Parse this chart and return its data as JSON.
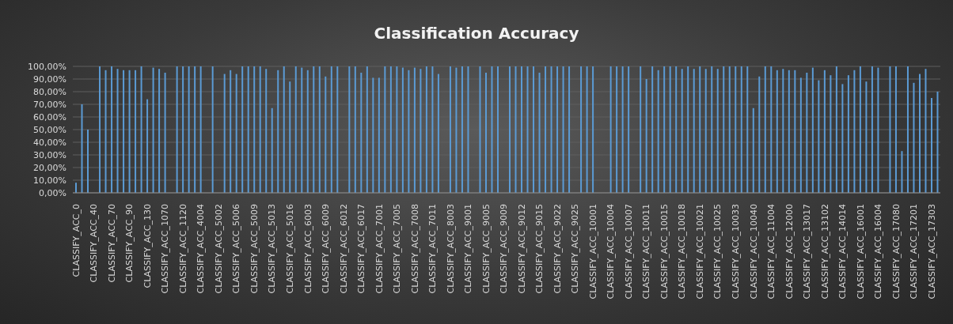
{
  "chart_data": {
    "type": "bar",
    "title": "Classification  Accuracy",
    "categories": [
      "CLASSIFY_ACC_0",
      null,
      null,
      "CLASSIFY_ACC_40",
      null,
      null,
      "CLASSIFY_ACC_70",
      null,
      null,
      "CLASSIFY_ACC_90",
      null,
      null,
      "CLASSIFY_ACC_130",
      null,
      null,
      "CLASSIFY_ACC_1070",
      null,
      null,
      "CLASSIFY_ACC_1120",
      null,
      null,
      "CLASSIFY_ACC_4004",
      null,
      null,
      "CLASSIFY_ACC_5002",
      null,
      null,
      "CLASSIFY_ACC_5006",
      null,
      null,
      "CLASSIFY_ACC_5009",
      null,
      null,
      "CLASSIFY_ACC_5013",
      null,
      null,
      "CLASSIFY_ACC_5016",
      null,
      null,
      "CLASSIFY_ACC_6003",
      null,
      null,
      "CLASSIFY_ACC_6009",
      null,
      null,
      "CLASSIFY_ACC_6012",
      null,
      null,
      "CLASSIFY_ACC_6017",
      null,
      null,
      "CLASSIFY_ACC_7001",
      null,
      null,
      "CLASSIFY_ACC_7005",
      null,
      null,
      "CLASSIFY_ACC_7008",
      null,
      null,
      "CLASSIFY_ACC_7011",
      null,
      null,
      "CLASSIFY_ACC_8003",
      null,
      null,
      "CLASSIFY_ACC_9001",
      null,
      null,
      "CLASSIFY_ACC_9005",
      null,
      null,
      "CLASSIFY_ACC_9009",
      null,
      null,
      "CLASSIFY_ACC_9012",
      null,
      null,
      "CLASSIFY_ACC_9015",
      null,
      null,
      "CLASSIFY_ACC_9022",
      null,
      null,
      "CLASSIFY_ACC_9025",
      null,
      null,
      "CLASSIFY_ACC_10001",
      null,
      null,
      "CLASSIFY_ACC_10004",
      null,
      null,
      "CLASSIFY_ACC_10007",
      null,
      null,
      "CLASSIFY_ACC_10011",
      null,
      null,
      "CLASSIFY_ACC_10015",
      null,
      null,
      "CLASSIFY_ACC_10018",
      null,
      null,
      "CLASSIFY_ACC_10021",
      null,
      null,
      "CLASSIFY_ACC_10025",
      null,
      null,
      "CLASSIFY_ACC_10033",
      null,
      null,
      "CLASSIFY_ACC_10040",
      null,
      null,
      "CLASSIFY_ACC_11004",
      null,
      null,
      "CLASSIFY_ACC_12000",
      null,
      null,
      "CLASSIFY_ACC_13017",
      null,
      null,
      "CLASSIFY_ACC_13102",
      null,
      null,
      "CLASSIFY_ACC_14014",
      null,
      null,
      "CLASSIFY_ACC_16001",
      null,
      null,
      "CLASSIFY_ACC_16004",
      null,
      null,
      "CLASSIFY_ACC_17080",
      null,
      null,
      "CLASSIFY_ACC_17201",
      null,
      null,
      "CLASSIFY_ACC_17303",
      null
    ],
    "values": [
      8,
      70,
      50,
      0,
      100,
      97,
      100,
      98,
      97,
      97,
      97,
      100,
      74,
      99,
      98,
      95,
      0,
      100,
      100,
      100,
      100,
      100,
      0,
      100,
      0,
      94,
      97,
      94,
      100,
      100,
      100,
      100,
      98,
      67,
      97,
      100,
      88,
      100,
      99,
      97,
      100,
      100,
      92,
      100,
      100,
      0,
      100,
      100,
      95,
      100,
      91,
      91,
      100,
      100,
      100,
      99,
      97,
      99,
      98,
      100,
      100,
      94,
      0,
      100,
      99,
      100,
      100,
      0,
      100,
      95,
      100,
      100,
      0,
      100,
      100,
      100,
      100,
      100,
      95,
      100,
      100,
      100,
      100,
      100,
      0,
      100,
      100,
      100,
      0,
      0,
      100,
      100,
      100,
      100,
      0,
      100,
      90,
      100,
      97,
      100,
      100,
      100,
      98,
      100,
      98,
      100,
      98,
      100,
      98,
      100,
      100,
      100,
      100,
      100,
      67,
      92,
      100,
      100,
      97,
      98,
      97,
      97,
      91,
      95,
      99,
      89,
      97,
      93,
      100,
      86,
      93,
      97,
      100,
      88,
      100,
      99,
      0,
      100,
      100,
      33,
      100,
      87,
      94,
      98,
      75,
      80
    ],
    "color": "#5b9bd5",
    "ylim": [
      0,
      100
    ],
    "yticks": [
      {
        "value": 0,
        "label": "0,00%"
      },
      {
        "value": 10,
        "label": "10,00%"
      },
      {
        "value": 20,
        "label": "20,00%"
      },
      {
        "value": 30,
        "label": "30,00%"
      },
      {
        "value": 40,
        "label": "40,00%"
      },
      {
        "value": 50,
        "label": "50,00%"
      },
      {
        "value": 60,
        "label": "60,00%"
      },
      {
        "value": 70,
        "label": "70,00%"
      },
      {
        "value": 80,
        "label": "80,00%"
      },
      {
        "value": 90,
        "label": "90,00%"
      },
      {
        "value": 100,
        "label": "100,00%"
      }
    ],
    "grid": "y"
  }
}
